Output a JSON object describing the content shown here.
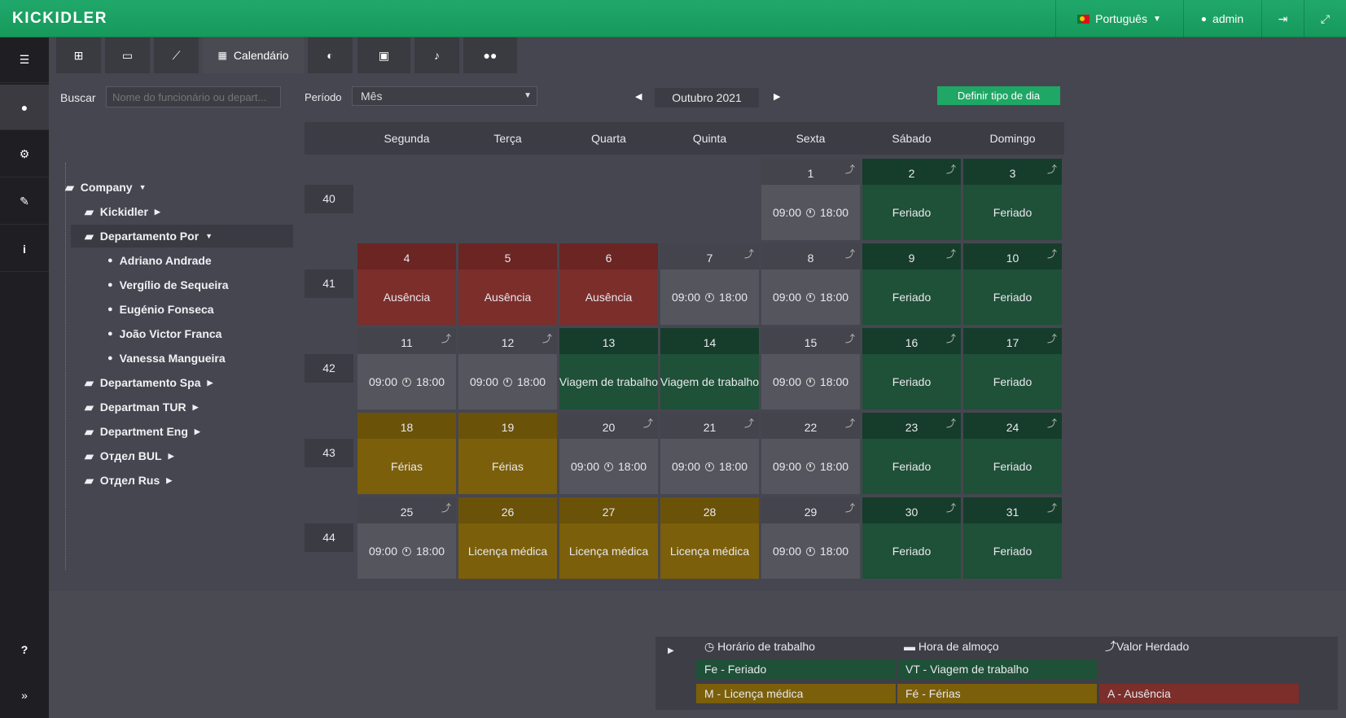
{
  "app": {
    "logo": "KICKIDLER"
  },
  "topbar": {
    "language": "Português",
    "user": "admin"
  },
  "sidebar": {
    "items": [
      "list-icon",
      "user-icon",
      "gears-icon",
      "wrench-icon",
      "info-icon",
      "help-icon",
      "expand-icon"
    ],
    "help": "?",
    "expand": "»"
  },
  "tabs": [
    {
      "icon": "org-icon",
      "label": ""
    },
    {
      "icon": "monitor-icon",
      "label": ""
    },
    {
      "icon": "chart-icon",
      "label": ""
    },
    {
      "icon": "calendar-icon",
      "label": "Calendário"
    },
    {
      "icon": "toggle-icon",
      "label": ""
    },
    {
      "icon": "id-card-icon",
      "label": ""
    },
    {
      "icon": "bell-icon",
      "label": ""
    },
    {
      "icon": "users-icon",
      "label": ""
    }
  ],
  "search": {
    "label": "Buscar",
    "placeholder": "Nome do funcionário ou depart..."
  },
  "tree": {
    "root": "Company",
    "items": [
      {
        "label": "Kickidler"
      },
      {
        "label": "Departamento Por"
      },
      {
        "label": "Adriano Andrade"
      },
      {
        "label": "Vergílio de Sequeira"
      },
      {
        "label": "Eugénio Fonseca"
      },
      {
        "label": "João Victor Franca"
      },
      {
        "label": "Vanessa Mangueira"
      },
      {
        "label": "Departamento Spa"
      },
      {
        "label": "Departman TUR"
      },
      {
        "label": "Department Eng"
      },
      {
        "label": "Отдел BUL"
      },
      {
        "label": "Отдел Rus"
      }
    ]
  },
  "controls": {
    "period_label": "Período",
    "period_value": "Mês",
    "month": "Outubro 2021",
    "prev": "◀",
    "next": "▶",
    "define_button": "Definir tipo de dia"
  },
  "calendar": {
    "weekdays": [
      "Segunda",
      "Terça",
      "Quarta",
      "Quinta",
      "Sexta",
      "Sábado",
      "Domingo"
    ],
    "weeks": [
      "40",
      "41",
      "42",
      "43",
      "44"
    ],
    "work_start": "09:00",
    "work_end": "18:00",
    "days": [
      {
        "n": "1",
        "t": "w"
      },
      {
        "n": "2",
        "t": "h",
        "label": "Feriado"
      },
      {
        "n": "3",
        "t": "h",
        "label": "Feriado"
      },
      {
        "n": "4",
        "t": "a",
        "label": "Ausência"
      },
      {
        "n": "5",
        "t": "a",
        "label": "Ausência"
      },
      {
        "n": "6",
        "t": "a",
        "label": "Ausência"
      },
      {
        "n": "7",
        "t": "w"
      },
      {
        "n": "8",
        "t": "w"
      },
      {
        "n": "9",
        "t": "h",
        "label": "Feriado"
      },
      {
        "n": "10",
        "t": "h",
        "label": "Feriado"
      },
      {
        "n": "11",
        "t": "w"
      },
      {
        "n": "12",
        "t": "w"
      },
      {
        "n": "13",
        "t": "t",
        "label": "Viagem de trabalho"
      },
      {
        "n": "14",
        "t": "t",
        "label": "Viagem de trabalho"
      },
      {
        "n": "15",
        "t": "w"
      },
      {
        "n": "16",
        "t": "h",
        "label": "Feriado"
      },
      {
        "n": "17",
        "t": "h",
        "label": "Feriado"
      },
      {
        "n": "18",
        "t": "f",
        "label": "Férias"
      },
      {
        "n": "19",
        "t": "f",
        "label": "Férias"
      },
      {
        "n": "20",
        "t": "w"
      },
      {
        "n": "21",
        "t": "w"
      },
      {
        "n": "22",
        "t": "w"
      },
      {
        "n": "23",
        "t": "h",
        "label": "Feriado"
      },
      {
        "n": "24",
        "t": "h",
        "label": "Feriado"
      },
      {
        "n": "25",
        "t": "w"
      },
      {
        "n": "26",
        "t": "f",
        "label": "Licença médica"
      },
      {
        "n": "27",
        "t": "f",
        "label": "Licença médica"
      },
      {
        "n": "28",
        "t": "f",
        "label": "Licença médica"
      },
      {
        "n": "29",
        "t": "w"
      },
      {
        "n": "30",
        "t": "h",
        "label": "Feriado"
      },
      {
        "n": "31",
        "t": "h",
        "label": "Feriado"
      }
    ]
  },
  "legend": {
    "work_hours": "Horário de trabalho",
    "lunch": "Hora de almoço",
    "inherited": "Valor Herdado",
    "holiday": "Fe - Feriado",
    "trip": "VT - Viagem de trabalho",
    "sick": "M - Licença médica",
    "vacation": "Fé - Férias",
    "absence": "A - Ausência"
  },
  "colors": {
    "brand": "#1fa765",
    "holiday": "#1f5038",
    "absence": "#7c2e2a",
    "vacation": "#7b5f0a"
  }
}
